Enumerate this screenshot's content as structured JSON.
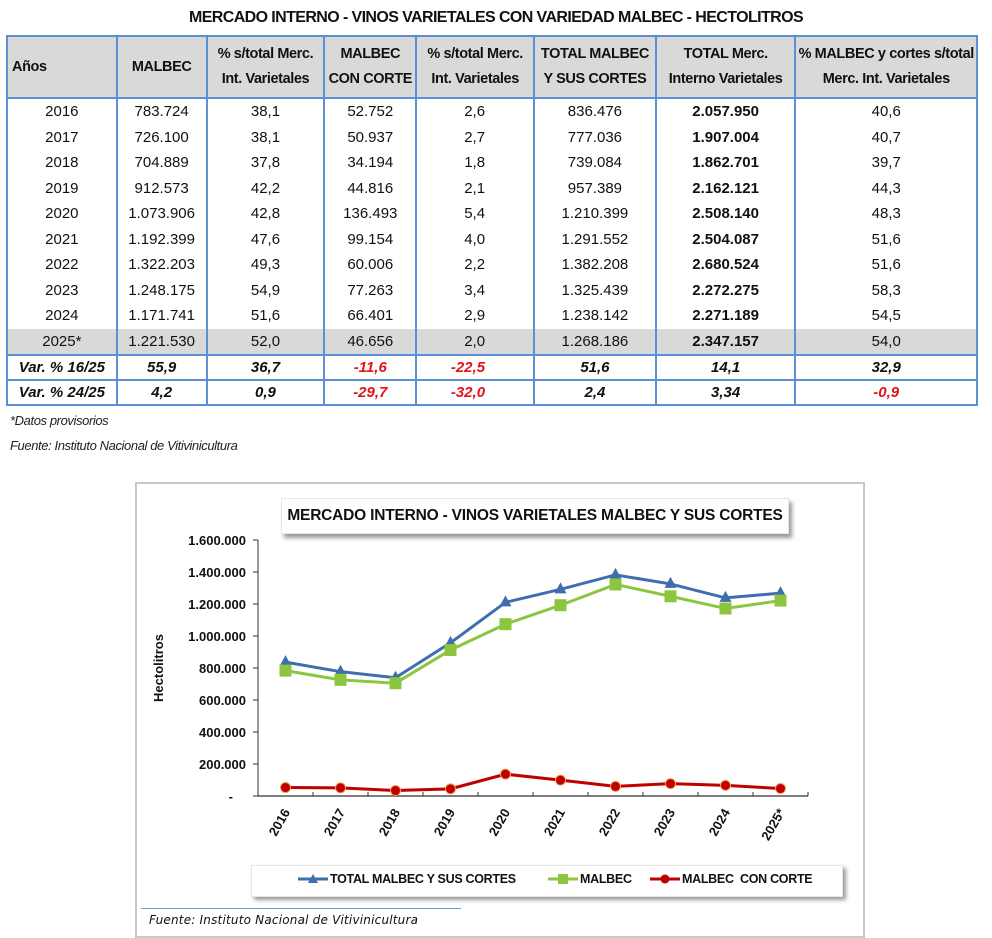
{
  "table": {
    "title": "MERCADO INTERNO - VINOS VARIETALES CON VARIEDAD MALBEC - HECTOLITROS",
    "headers": [
      [
        "Años"
      ],
      [
        "MALBEC"
      ],
      [
        "% s/total Merc.",
        "Int. Varietales"
      ],
      [
        "MALBEC",
        "CON CORTE"
      ],
      [
        "% s/total Merc.",
        "Int. Varietales"
      ],
      [
        "TOTAL MALBEC",
        "Y SUS CORTES"
      ],
      [
        "TOTAL Merc.",
        "Interno Varietales"
      ],
      [
        "% MALBEC y cortes s/total",
        "Merc. Int. Varietales"
      ]
    ],
    "rows": [
      [
        "2016",
        "783.724",
        "38,1",
        "52.752",
        "2,6",
        "836.476",
        "2.057.950",
        "40,6"
      ],
      [
        "2017",
        "726.100",
        "38,1",
        "50.937",
        "2,7",
        "777.036",
        "1.907.004",
        "40,7"
      ],
      [
        "2018",
        "704.889",
        "37,8",
        "34.194",
        "1,8",
        "739.084",
        "1.862.701",
        "39,7"
      ],
      [
        "2019",
        "912.573",
        "42,2",
        "44.816",
        "2,1",
        "957.389",
        "2.162.121",
        "44,3"
      ],
      [
        "2020",
        "1.073.906",
        "42,8",
        "136.493",
        "5,4",
        "1.210.399",
        "2.508.140",
        "48,3"
      ],
      [
        "2021",
        "1.192.399",
        "47,6",
        "99.154",
        "4,0",
        "1.291.552",
        "2.504.087",
        "51,6"
      ],
      [
        "2022",
        "1.322.203",
        "49,3",
        "60.006",
        "2,2",
        "1.382.208",
        "2.680.524",
        "51,6"
      ],
      [
        "2023",
        "1.248.175",
        "54,9",
        "77.263",
        "3,4",
        "1.325.439",
        "2.272.275",
        "58,3"
      ],
      [
        "2024",
        "1.171.741",
        "51,6",
        "66.401",
        "2,9",
        "1.238.142",
        "2.271.189",
        "54,5"
      ],
      [
        "2025*",
        "1.221.530",
        "52,0",
        "46.656",
        "2,0",
        "1.268.186",
        "2.347.157",
        "54,0"
      ]
    ],
    "variation_rows": [
      {
        "label": "Var. % 16/25",
        "values": [
          "55,9",
          "36,7",
          "-11,6",
          "-22,5",
          "51,6",
          "14,1",
          "32,9"
        ]
      },
      {
        "label": "Var. % 24/25",
        "values": [
          "4,2",
          "0,9",
          "-29,7",
          "-32,0",
          "2,4",
          "3,34",
          "-0,9"
        ]
      }
    ],
    "footnote": "*Datos provisorios",
    "source": "Fuente: Instituto Nacional de Vitivinicultura",
    "negative_color": "#e3121b",
    "border_color": "#5b8fd6",
    "provisional_row_bg": "#d9d9d9"
  },
  "chart_data": {
    "type": "line",
    "title": "MERCADO INTERNO - VINOS VARIETALES MALBEC Y SUS CORTES",
    "xlabel": "",
    "ylabel": "Hectolitros",
    "categories": [
      "2016",
      "2017",
      "2018",
      "2019",
      "2020",
      "2021",
      "2022",
      "2023",
      "2024",
      "2025*"
    ],
    "ylim": [
      0,
      1600000
    ],
    "yticks": [
      0,
      200000,
      400000,
      600000,
      800000,
      1000000,
      1200000,
      1400000,
      1600000
    ],
    "ytick_labels": [
      "-",
      "200.000",
      "400.000",
      "600.000",
      "800.000",
      "1.000.000",
      "1.200.000",
      "1.400.000",
      "1.600.000"
    ],
    "grid": false,
    "legend_position": "bottom",
    "series": [
      {
        "name": "TOTAL MALBEC Y SUS CORTES",
        "marker": "triangle",
        "color": "#3f6eae",
        "values": [
          836476,
          777036,
          739084,
          957389,
          1210399,
          1291552,
          1382208,
          1325439,
          1238142,
          1268186
        ]
      },
      {
        "name": "MALBEC",
        "marker": "square",
        "color": "#8cc63f",
        "values": [
          783724,
          726100,
          704889,
          912573,
          1073906,
          1192399,
          1322203,
          1248175,
          1171741,
          1221530
        ]
      },
      {
        "name": "MALBEC  CON CORTE",
        "marker": "circle",
        "color": "#c00000",
        "values": [
          52752,
          50937,
          34194,
          44816,
          136493,
          99154,
          60006,
          77263,
          66401,
          46656
        ]
      }
    ],
    "source": "Fuente: Instituto Nacional de Vitivinicultura"
  }
}
